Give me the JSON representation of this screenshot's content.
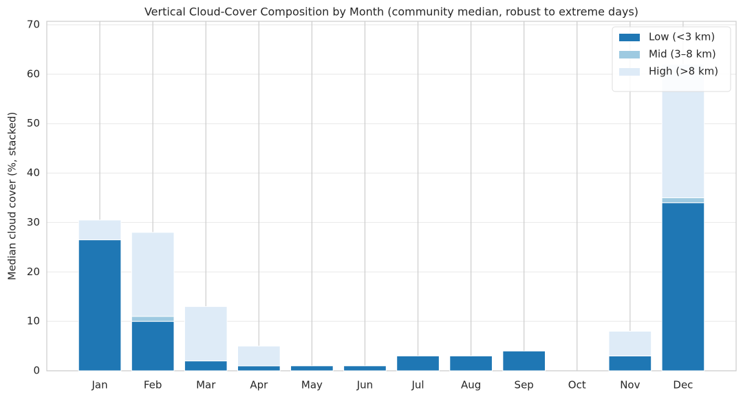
{
  "chart_data": {
    "type": "stacked_bar",
    "title": "Vertical Cloud-Cover Composition by Month (community median, robust to extreme days)",
    "y_label": "Median cloud cover (%, stacked)",
    "categories": [
      "Jan",
      "Feb",
      "Mar",
      "Apr",
      "May",
      "Jun",
      "Jul",
      "Aug",
      "Sep",
      "Oct",
      "Nov",
      "Dec"
    ],
    "series": [
      {
        "name": "Low (<3 km)",
        "color": "#1f77b4",
        "values": [
          26.5,
          10,
          2,
          1,
          1,
          1,
          3,
          3,
          4,
          0,
          3,
          34
        ]
      },
      {
        "name": "Mid (3–8 km)",
        "color": "#9ecae1",
        "values": [
          0,
          1,
          0,
          0,
          0,
          0,
          0,
          0,
          0,
          0,
          0,
          1
        ]
      },
      {
        "name": "High (>8 km)",
        "color": "#deebf7",
        "values": [
          4,
          17,
          11,
          4,
          0,
          0,
          0,
          0,
          0,
          0,
          5,
          27
        ]
      }
    ],
    "ylim": [
      0,
      70.7
    ],
    "yticks": [
      0,
      10,
      20,
      30,
      40,
      50,
      60,
      70
    ],
    "grid": true,
    "legend": "upper right"
  }
}
